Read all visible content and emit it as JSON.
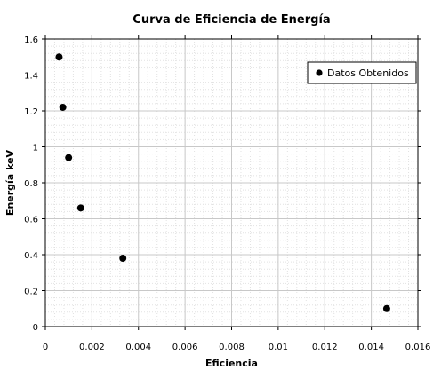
{
  "chart_data": {
    "type": "scatter",
    "title": "Curva de Eficiencia de Energía",
    "xlabel": "Eficiencia",
    "ylabel": "Energía keV",
    "xlim": [
      0,
      0.016
    ],
    "ylim": [
      0,
      1.6
    ],
    "xticks": [
      0,
      0.002,
      0.004,
      0.006,
      0.008,
      0.01,
      0.012,
      0.014,
      0.016
    ],
    "xtick_labels": [
      "0",
      "0.002",
      "0.004",
      "0.006",
      "0.008",
      "0.01",
      "0.012",
      "0.014",
      "0.016"
    ],
    "yticks": [
      0,
      0.2,
      0.4,
      0.6,
      0.8,
      1,
      1.2,
      1.4,
      1.6
    ],
    "ytick_labels": [
      "0",
      "0.2",
      "0.4",
      "0.6",
      "0.8",
      "1",
      "1.2",
      "1.4",
      "1.6"
    ],
    "grid": true,
    "legend_position": "top-right",
    "series": [
      {
        "name": "Datos Obtenidos",
        "color": "#000000",
        "x": [
          0.00059,
          0.00075,
          0.001,
          0.00152,
          0.00333,
          0.01466
        ],
        "y": [
          1.5,
          1.22,
          0.94,
          0.66,
          0.38,
          0.1
        ]
      }
    ]
  }
}
